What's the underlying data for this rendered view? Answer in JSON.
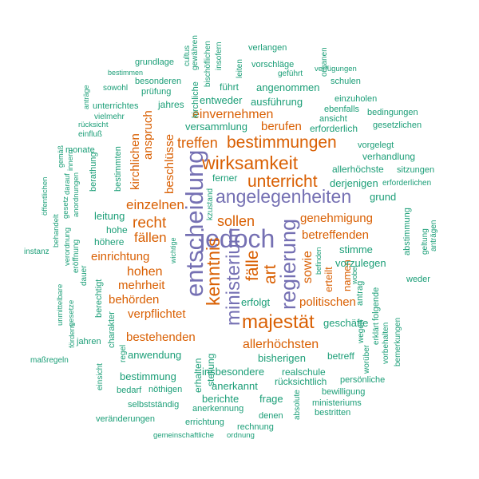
{
  "palette": {
    "c1": "#7570b3",
    "c2": "#d95f02",
    "c3": "#1b9e77",
    "background": "#ffffff"
  },
  "words": [
    {
      "id": "jedoch",
      "text": "jedoch",
      "color": "c1"
    },
    {
      "id": "entscheidung",
      "text": "entscheidung",
      "color": "c1"
    },
    {
      "id": "angelegenheiten",
      "text": "angelegenheiten",
      "color": "c1"
    },
    {
      "id": "regierung",
      "text": "regierung",
      "color": "c1"
    },
    {
      "id": "ministerium",
      "text": "ministerium",
      "color": "c1"
    },
    {
      "id": "wirksamkeit",
      "text": "wirksamkeit",
      "color": "c2"
    },
    {
      "id": "unterricht",
      "text": "unterricht",
      "color": "c2"
    },
    {
      "id": "bestimmungen",
      "text": "bestimmungen",
      "color": "c2"
    },
    {
      "id": "majestaet",
      "text": "majestät",
      "color": "c2"
    },
    {
      "id": "kenntnis",
      "text": "kenntnis",
      "color": "c2"
    },
    {
      "id": "art",
      "text": "art",
      "color": "c2"
    },
    {
      "id": "faelle",
      "text": "fälle",
      "color": "c2"
    },
    {
      "id": "recht",
      "text": "recht",
      "color": "c2"
    },
    {
      "id": "sollen",
      "text": "sollen",
      "color": "c2"
    },
    {
      "id": "einzelnen",
      "text": "einzelnen",
      "color": "c2"
    },
    {
      "id": "faellen",
      "text": "fällen",
      "color": "c2"
    },
    {
      "id": "einvernehmen",
      "text": "einvernehmen",
      "color": "c2"
    },
    {
      "id": "treffen",
      "text": "treffen",
      "color": "c2"
    },
    {
      "id": "berufen",
      "text": "berufen",
      "color": "c2"
    },
    {
      "id": "genehmigung",
      "text": "genehmigung",
      "color": "c2"
    },
    {
      "id": "betreffenden",
      "text": "betreffenden",
      "color": "c2"
    },
    {
      "id": "sowie",
      "text": "sowie",
      "color": "c2"
    },
    {
      "id": "einrichtung",
      "text": "einrichtung",
      "color": "c2"
    },
    {
      "id": "hohen",
      "text": "hohen",
      "color": "c2"
    },
    {
      "id": "mehrheit",
      "text": "mehrheit",
      "color": "c2"
    },
    {
      "id": "behoerden",
      "text": "behörden",
      "color": "c2"
    },
    {
      "id": "verpflichtet",
      "text": "verpflichtet",
      "color": "c2"
    },
    {
      "id": "bestehenden",
      "text": "bestehenden",
      "color": "c2"
    },
    {
      "id": "allerhoechsten",
      "text": "allerhöchsten",
      "color": "c2"
    },
    {
      "id": "politischen",
      "text": "politischen",
      "color": "c2"
    },
    {
      "id": "namen",
      "text": "namen",
      "color": "c2"
    },
    {
      "id": "erteilt",
      "text": "erteilt",
      "color": "c2"
    },
    {
      "id": "anspruch",
      "text": "anspruch",
      "color": "c2"
    },
    {
      "id": "kirchlichen",
      "text": "kirchlichen",
      "color": "c2"
    },
    {
      "id": "beschluesse",
      "text": "beschlüsse",
      "color": "c2"
    },
    {
      "id": "versammlung",
      "text": "versammlung",
      "color": "c3"
    },
    {
      "id": "erforderlich",
      "text": "erforderlich",
      "color": "c3"
    },
    {
      "id": "entweder",
      "text": "entweder",
      "color": "c3"
    },
    {
      "id": "ausfuehrung",
      "text": "ausführung",
      "color": "c3"
    },
    {
      "id": "angenommen",
      "text": "angenommen",
      "color": "c3"
    },
    {
      "id": "fuehrt",
      "text": "führt",
      "color": "c3"
    },
    {
      "id": "jahres",
      "text": "jahres",
      "color": "c3"
    },
    {
      "id": "unterrichtes",
      "text": "unterrichtes",
      "color": "c3"
    },
    {
      "id": "allerhoechste",
      "text": "allerhöchste",
      "color": "c3"
    },
    {
      "id": "derjenigen",
      "text": "derjenigen",
      "color": "c3"
    },
    {
      "id": "grund",
      "text": "grund",
      "color": "c3"
    },
    {
      "id": "stimme",
      "text": "stimme",
      "color": "c3"
    },
    {
      "id": "vorzulegen",
      "text": "vorzulegen",
      "color": "c3"
    },
    {
      "id": "erfolgt",
      "text": "erfolgt",
      "color": "c3"
    },
    {
      "id": "geschaefte",
      "text": "geschäfte",
      "color": "c3"
    },
    {
      "id": "bisherigen",
      "text": "bisherigen",
      "color": "c3"
    },
    {
      "id": "betreff",
      "text": "betreff",
      "color": "c3"
    },
    {
      "id": "insbesondere",
      "text": "insbesondere",
      "color": "c3"
    },
    {
      "id": "realschule",
      "text": "realschule",
      "color": "c3"
    },
    {
      "id": "anwendung",
      "text": "anwendung",
      "color": "c3"
    },
    {
      "id": "bestimmung",
      "text": "bestimmung",
      "color": "c3"
    },
    {
      "id": "leitung",
      "text": "leitung",
      "color": "c3"
    },
    {
      "id": "hohe",
      "text": "hohe",
      "color": "c3"
    },
    {
      "id": "hoehere",
      "text": "höhere",
      "color": "c3"
    },
    {
      "id": "ferner",
      "text": "ferner",
      "color": "c3"
    },
    {
      "id": "anerkannt",
      "text": "anerkannt",
      "color": "c3"
    },
    {
      "id": "berichte",
      "text": "berichte",
      "color": "c3"
    },
    {
      "id": "frage",
      "text": "frage",
      "color": "c3"
    },
    {
      "id": "ruecksichtlich",
      "text": "rücksichtlich",
      "color": "c3"
    },
    {
      "id": "persoenliche",
      "text": "persönliche",
      "color": "c3"
    },
    {
      "id": "bewilligung",
      "text": "bewilligung",
      "color": "c3"
    },
    {
      "id": "ministeriums",
      "text": "ministeriums",
      "color": "c3"
    },
    {
      "id": "bestritten",
      "text": "bestritten",
      "color": "c3"
    },
    {
      "id": "denen",
      "text": "denen",
      "color": "c3"
    },
    {
      "id": "rechnung",
      "text": "rechnung",
      "color": "c3"
    },
    {
      "id": "anerkennung",
      "text": "anerkennung",
      "color": "c3"
    },
    {
      "id": "errichtung",
      "text": "errichtung",
      "color": "c3"
    },
    {
      "id": "selbststaendig",
      "text": "selbstständig",
      "color": "c3"
    },
    {
      "id": "noethigen",
      "text": "nöthigen",
      "color": "c3"
    },
    {
      "id": "bedarf",
      "text": "bedarf",
      "color": "c3"
    },
    {
      "id": "veraenderungen",
      "text": "veränderungen",
      "color": "c3"
    },
    {
      "id": "gemeinschaftliche",
      "text": "gemeinschaftliche",
      "color": "c3"
    },
    {
      "id": "ordnung",
      "text": "ordnung",
      "color": "c3"
    },
    {
      "id": "verhandlung",
      "text": "verhandlung",
      "color": "c3"
    },
    {
      "id": "vorgelegt",
      "text": "vorgelegt",
      "color": "c3"
    },
    {
      "id": "sitzungen",
      "text": "sitzungen",
      "color": "c3"
    },
    {
      "id": "erforderlichen",
      "text": "erforderlichen",
      "color": "c3"
    },
    {
      "id": "gesetzlichen",
      "text": "gesetzlichen",
      "color": "c3"
    },
    {
      "id": "bedingungen",
      "text": "bedingungen",
      "color": "c3"
    },
    {
      "id": "ebenfalls",
      "text": "ebenfalls",
      "color": "c3"
    },
    {
      "id": "einzuholen",
      "text": "einzuholen",
      "color": "c3"
    },
    {
      "id": "ansicht",
      "text": "ansicht",
      "color": "c3"
    },
    {
      "id": "schulen",
      "text": "schulen",
      "color": "c3"
    },
    {
      "id": "gefuehrt",
      "text": "geführt",
      "color": "c3"
    },
    {
      "id": "vorschlaege",
      "text": "vorschläge",
      "color": "c3"
    },
    {
      "id": "verfuegungen",
      "text": "verfügungen",
      "color": "c3"
    },
    {
      "id": "verlangen",
      "text": "verlangen",
      "color": "c3"
    },
    {
      "id": "grundlage",
      "text": "grundlage",
      "color": "c3"
    },
    {
      "id": "bestimmen",
      "text": "bestimmen",
      "color": "c3"
    },
    {
      "id": "besonderen",
      "text": "besonderen",
      "color": "c3"
    },
    {
      "id": "sowohl",
      "text": "sowohl",
      "color": "c3"
    },
    {
      "id": "pruefung",
      "text": "prüfung",
      "color": "c3"
    },
    {
      "id": "ruecksicht",
      "text": "rücksicht",
      "color": "c3"
    },
    {
      "id": "vielmehr",
      "text": "vielmehr",
      "color": "c3"
    },
    {
      "id": "einfluss",
      "text": "einfluß",
      "color": "c3"
    },
    {
      "id": "monate",
      "text": "monate",
      "color": "c3"
    },
    {
      "id": "instanz",
      "text": "instanz",
      "color": "c3"
    },
    {
      "id": "weder",
      "text": "weder",
      "color": "c3"
    },
    {
      "id": "massregeln",
      "text": "maßregeln",
      "color": "c3"
    },
    {
      "id": "jahren",
      "text": "jahren",
      "color": "c3"
    },
    {
      "id": "cultus",
      "text": "cultus",
      "color": "c3"
    },
    {
      "id": "gewaehren",
      "text": "gewähren",
      "color": "c3"
    },
    {
      "id": "bischoeflichen",
      "text": "bischöflichen",
      "color": "c3"
    },
    {
      "id": "insofern",
      "text": "insofern",
      "color": "c3"
    },
    {
      "id": "leiten",
      "text": "leiten",
      "color": "c3"
    },
    {
      "id": "organen",
      "text": "organen",
      "color": "c3"
    },
    {
      "id": "kirchliche",
      "text": "kirchliche",
      "color": "c3"
    },
    {
      "id": "antraege",
      "text": "anträge",
      "color": "c3"
    },
    {
      "id": "gemaess",
      "text": "gemäß",
      "color": "c3"
    },
    {
      "id": "oeffentlichen",
      "text": "öffentlichen",
      "color": "c3"
    },
    {
      "id": "behandelt",
      "text": "behandelt",
      "color": "c3"
    },
    {
      "id": "gesetz",
      "text": "gesetz",
      "color": "c3"
    },
    {
      "id": "verordnung",
      "text": "verordnung",
      "color": "c3"
    },
    {
      "id": "darauf",
      "text": "darauf",
      "color": "c3"
    },
    {
      "id": "innern",
      "text": "innern",
      "color": "c3"
    },
    {
      "id": "anordnungen",
      "text": "anordnungen",
      "color": "c3"
    },
    {
      "id": "eroeffnung",
      "text": "eröffnung",
      "color": "c3"
    },
    {
      "id": "dauer",
      "text": "dauer",
      "color": "c3"
    },
    {
      "id": "berathung",
      "text": "berathung",
      "color": "c3"
    },
    {
      "id": "bestimmten",
      "text": "bestimmten",
      "color": "c3"
    },
    {
      "id": "berechtigt",
      "text": "berechtigt",
      "color": "c3"
    },
    {
      "id": "charakter",
      "text": "charakter",
      "color": "c3"
    },
    {
      "id": "regel",
      "text": "regel",
      "color": "c3"
    },
    {
      "id": "unmittelbare",
      "text": "unmittelbare",
      "color": "c3"
    },
    {
      "id": "gesetze",
      "text": "gesetze",
      "color": "c3"
    },
    {
      "id": "foerdern",
      "text": "fördern",
      "color": "c3"
    },
    {
      "id": "einsicht",
      "text": "einsicht",
      "color": "c3"
    },
    {
      "id": "wichtige",
      "text": "wichtige",
      "color": "c3"
    },
    {
      "id": "kzustand",
      "text": "kzustand",
      "color": "c3"
    },
    {
      "id": "erhalten",
      "text": "erhalten",
      "color": "c3"
    },
    {
      "id": "stellung",
      "text": "stellung",
      "color": "c3"
    },
    {
      "id": "befinden",
      "text": "befinden",
      "color": "c3"
    },
    {
      "id": "wobei",
      "text": "wobei",
      "color": "c3"
    },
    {
      "id": "antrag",
      "text": "antrag",
      "color": "c3"
    },
    {
      "id": "wegen",
      "text": "wegen",
      "color": "c3"
    },
    {
      "id": "worueber",
      "text": "worüber",
      "color": "c3"
    },
    {
      "id": "erklaert",
      "text": "erklärt",
      "color": "c3"
    },
    {
      "id": "folgende",
      "text": "folgende",
      "color": "c3"
    },
    {
      "id": "vorbehalten",
      "text": "vorbehalten",
      "color": "c3"
    },
    {
      "id": "bemerkungen",
      "text": "bemerkungen",
      "color": "c3"
    },
    {
      "id": "abstimmung",
      "text": "abstimmung",
      "color": "c3"
    },
    {
      "id": "geltung",
      "text": "geltung",
      "color": "c3"
    },
    {
      "id": "antraegen",
      "text": "anträgen",
      "color": "c3"
    },
    {
      "id": "absolute",
      "text": "absolute",
      "color": "c3"
    }
  ]
}
